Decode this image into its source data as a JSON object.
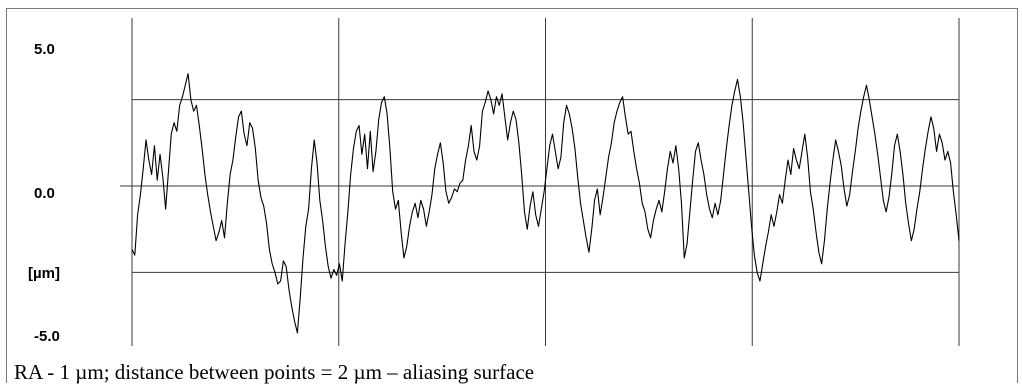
{
  "caption": "RA - 1 µm; distance between points = 2 µm – aliasing surface",
  "chart_data": {
    "type": "line",
    "ylabel": "[µm]",
    "ylim": [
      -5.0,
      5.0
    ],
    "yticks": [
      {
        "label": "5.0",
        "value": 5.0
      },
      {
        "label": "0.0",
        "value": 0.0
      },
      {
        "label": "-5.0",
        "value": -5.0
      }
    ],
    "reference_lines": [
      3.0,
      0.0,
      -3.0
    ],
    "x_gridlines": 5,
    "grid": true,
    "line_color": "#000000",
    "series": [
      {
        "values": [
          -2.2,
          -2.4,
          -1.0,
          -0.3,
          0.6,
          1.6,
          0.9,
          0.4,
          1.4,
          0.2,
          1.1,
          0.3,
          -0.8,
          0.5,
          1.8,
          2.2,
          1.9,
          2.8,
          3.1,
          3.5,
          3.9,
          3.0,
          2.6,
          2.8,
          2.1,
          1.3,
          0.4,
          -0.3,
          -0.9,
          -1.4,
          -1.9,
          -1.6,
          -1.2,
          -1.8,
          -0.6,
          0.4,
          0.9,
          1.7,
          2.4,
          2.6,
          1.8,
          1.4,
          2.2,
          2.0,
          1.3,
          0.2,
          -0.4,
          -0.7,
          -1.3,
          -2.2,
          -2.7,
          -3.0,
          -3.4,
          -3.3,
          -2.6,
          -2.8,
          -3.6,
          -4.2,
          -4.7,
          -5.1,
          -3.9,
          -2.5,
          -1.4,
          -0.8,
          0.6,
          1.6,
          0.8,
          -0.5,
          -1.2,
          -2.1,
          -2.8,
          -3.2,
          -2.9,
          -3.1,
          -2.7,
          -3.3,
          -2.0,
          -0.9,
          0.4,
          1.3,
          1.9,
          2.1,
          1.1,
          1.8,
          0.6,
          1.9,
          0.5,
          1.2,
          2.3,
          2.9,
          3.1,
          2.5,
          1.3,
          -0.2,
          -0.8,
          -0.5,
          -1.6,
          -2.5,
          -2.1,
          -1.4,
          -0.9,
          -0.6,
          -1.1,
          -0.5,
          -0.8,
          -1.4,
          -0.9,
          -0.3,
          0.6,
          1.1,
          1.5,
          0.8,
          -0.2,
          -0.6,
          -0.4,
          -0.1,
          -0.2,
          0.1,
          0.2,
          0.9,
          1.4,
          2.1,
          1.2,
          0.9,
          1.4,
          2.6,
          2.9,
          3.3,
          3.0,
          2.5,
          3.1,
          2.8,
          3.2,
          2.4,
          1.6,
          2.2,
          2.6,
          2.3,
          1.5,
          0.4,
          -0.9,
          -1.5,
          -0.7,
          -0.2,
          -1.0,
          -1.4,
          -0.8,
          -0.2,
          0.6,
          1.4,
          1.8,
          1.2,
          0.6,
          1.0,
          2.2,
          2.8,
          2.5,
          2.0,
          1.3,
          0.3,
          -0.6,
          -1.2,
          -1.8,
          -2.3,
          -1.5,
          -0.5,
          -0.1,
          -1.0,
          -0.4,
          0.3,
          1.0,
          1.5,
          2.2,
          2.6,
          2.9,
          3.1,
          2.4,
          1.8,
          1.9,
          1.2,
          0.6,
          0.1,
          -0.6,
          -0.9,
          -1.5,
          -1.8,
          -1.2,
          -0.8,
          -0.5,
          -0.9,
          -0.2,
          0.6,
          1.2,
          0.8,
          1.4,
          0.6,
          -0.6,
          -2.5,
          -2.0,
          -0.9,
          0.2,
          1.2,
          1.5,
          0.9,
          0.4,
          -0.3,
          -0.8,
          -1.1,
          -0.6,
          -1.0,
          -0.5,
          0.4,
          1.3,
          2.1,
          2.8,
          3.3,
          3.7,
          3.1,
          2.2,
          1.0,
          -0.2,
          -1.4,
          -2.4,
          -3.0,
          -3.3,
          -2.7,
          -2.1,
          -1.6,
          -1.0,
          -1.4,
          -0.9,
          -0.3,
          -0.6,
          0.2,
          0.9,
          0.4,
          1.3,
          0.9,
          0.6,
          1.2,
          1.8,
          1.0,
          -0.2,
          -0.8,
          -1.6,
          -2.3,
          -2.7,
          -1.9,
          -0.8,
          0.1,
          0.9,
          1.6,
          1.2,
          0.7,
          -0.1,
          -0.7,
          -0.3,
          0.5,
          1.2,
          2.0,
          2.6,
          3.1,
          3.5,
          3.0,
          2.4,
          1.8,
          1.1,
          0.3,
          -0.5,
          -0.9,
          -0.4,
          0.4,
          1.4,
          1.8,
          1.2,
          0.4,
          -0.6,
          -1.3,
          -1.9,
          -1.5,
          -0.8,
          -0.2,
          0.6,
          1.3,
          1.9,
          2.4,
          2.0,
          1.2,
          1.8,
          1.5,
          0.9,
          1.2,
          0.8,
          -0.2,
          -1.0,
          -1.9
        ]
      }
    ]
  }
}
